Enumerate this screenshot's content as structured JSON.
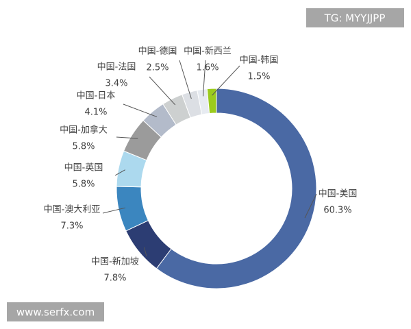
{
  "chart_data": {
    "type": "donut",
    "categories": [
      "中国-美国",
      "中国-新加坡",
      "中国-澳大利亚",
      "中国-英国",
      "中国-加拿大",
      "中国-日本",
      "中国-法国",
      "中国-德国",
      "中国-新西兰",
      "中国-韩国"
    ],
    "values": [
      60.3,
      7.8,
      7.3,
      5.8,
      5.8,
      4.1,
      3.4,
      2.5,
      1.6,
      1.5
    ],
    "value_labels": [
      "60.3%",
      "7.8%",
      "7.3%",
      "5.8%",
      "5.8%",
      "4.1%",
      "3.4%",
      "2.5%",
      "1.6%",
      "1.5%"
    ],
    "colors": [
      "#4a69a4",
      "#2c3d73",
      "#3b86bf",
      "#acd9ee",
      "#9b9b9b",
      "#b3bbca",
      "#cdd0d0",
      "#dcdfe4",
      "#e7ebf1",
      "#9bcb1d"
    ]
  },
  "watermarks": {
    "top_right": "TG: MYYJJPP",
    "bottom_left": "www.serfx.com"
  }
}
